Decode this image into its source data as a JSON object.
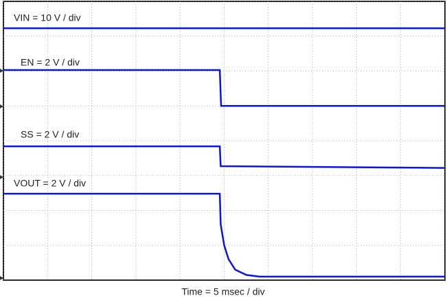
{
  "chart_data": {
    "type": "line",
    "xlabel": "Time = 5 msec / div",
    "xlim": [
      0,
      10
    ],
    "ylim": [
      0,
      8
    ],
    "xticks": [
      0,
      1,
      2,
      3,
      4,
      5,
      6,
      7,
      8,
      9,
      10
    ],
    "yticks": [
      0,
      1,
      2,
      3,
      4,
      5,
      6,
      7,
      8
    ],
    "grid": true,
    "series": [
      {
        "name": "VIN = 10 V / div",
        "color": "#0a14e0",
        "x": [
          0,
          10
        ],
        "values": [
          7.23,
          7.23
        ]
      },
      {
        "name": "EN = 2 V / div",
        "color": "#0a14e0",
        "x": [
          0,
          4.9,
          4.93,
          10
        ],
        "values": [
          6.03,
          6.03,
          5.0,
          5.0
        ]
      },
      {
        "name": "SS = 2 V / div",
        "color": "#0a14e0",
        "x": [
          0,
          4.9,
          4.92,
          10
        ],
        "values": [
          3.84,
          3.84,
          3.27,
          3.22
        ]
      },
      {
        "name": "VOUT = 2 V / div",
        "color": "#0a14e0",
        "x": [
          0,
          4.9,
          4.92,
          5.0,
          5.1,
          5.25,
          5.5,
          5.8,
          10
        ],
        "values": [
          2.48,
          2.48,
          1.6,
          1.0,
          0.6,
          0.3,
          0.15,
          0.1,
          0.1
        ]
      }
    ]
  }
}
